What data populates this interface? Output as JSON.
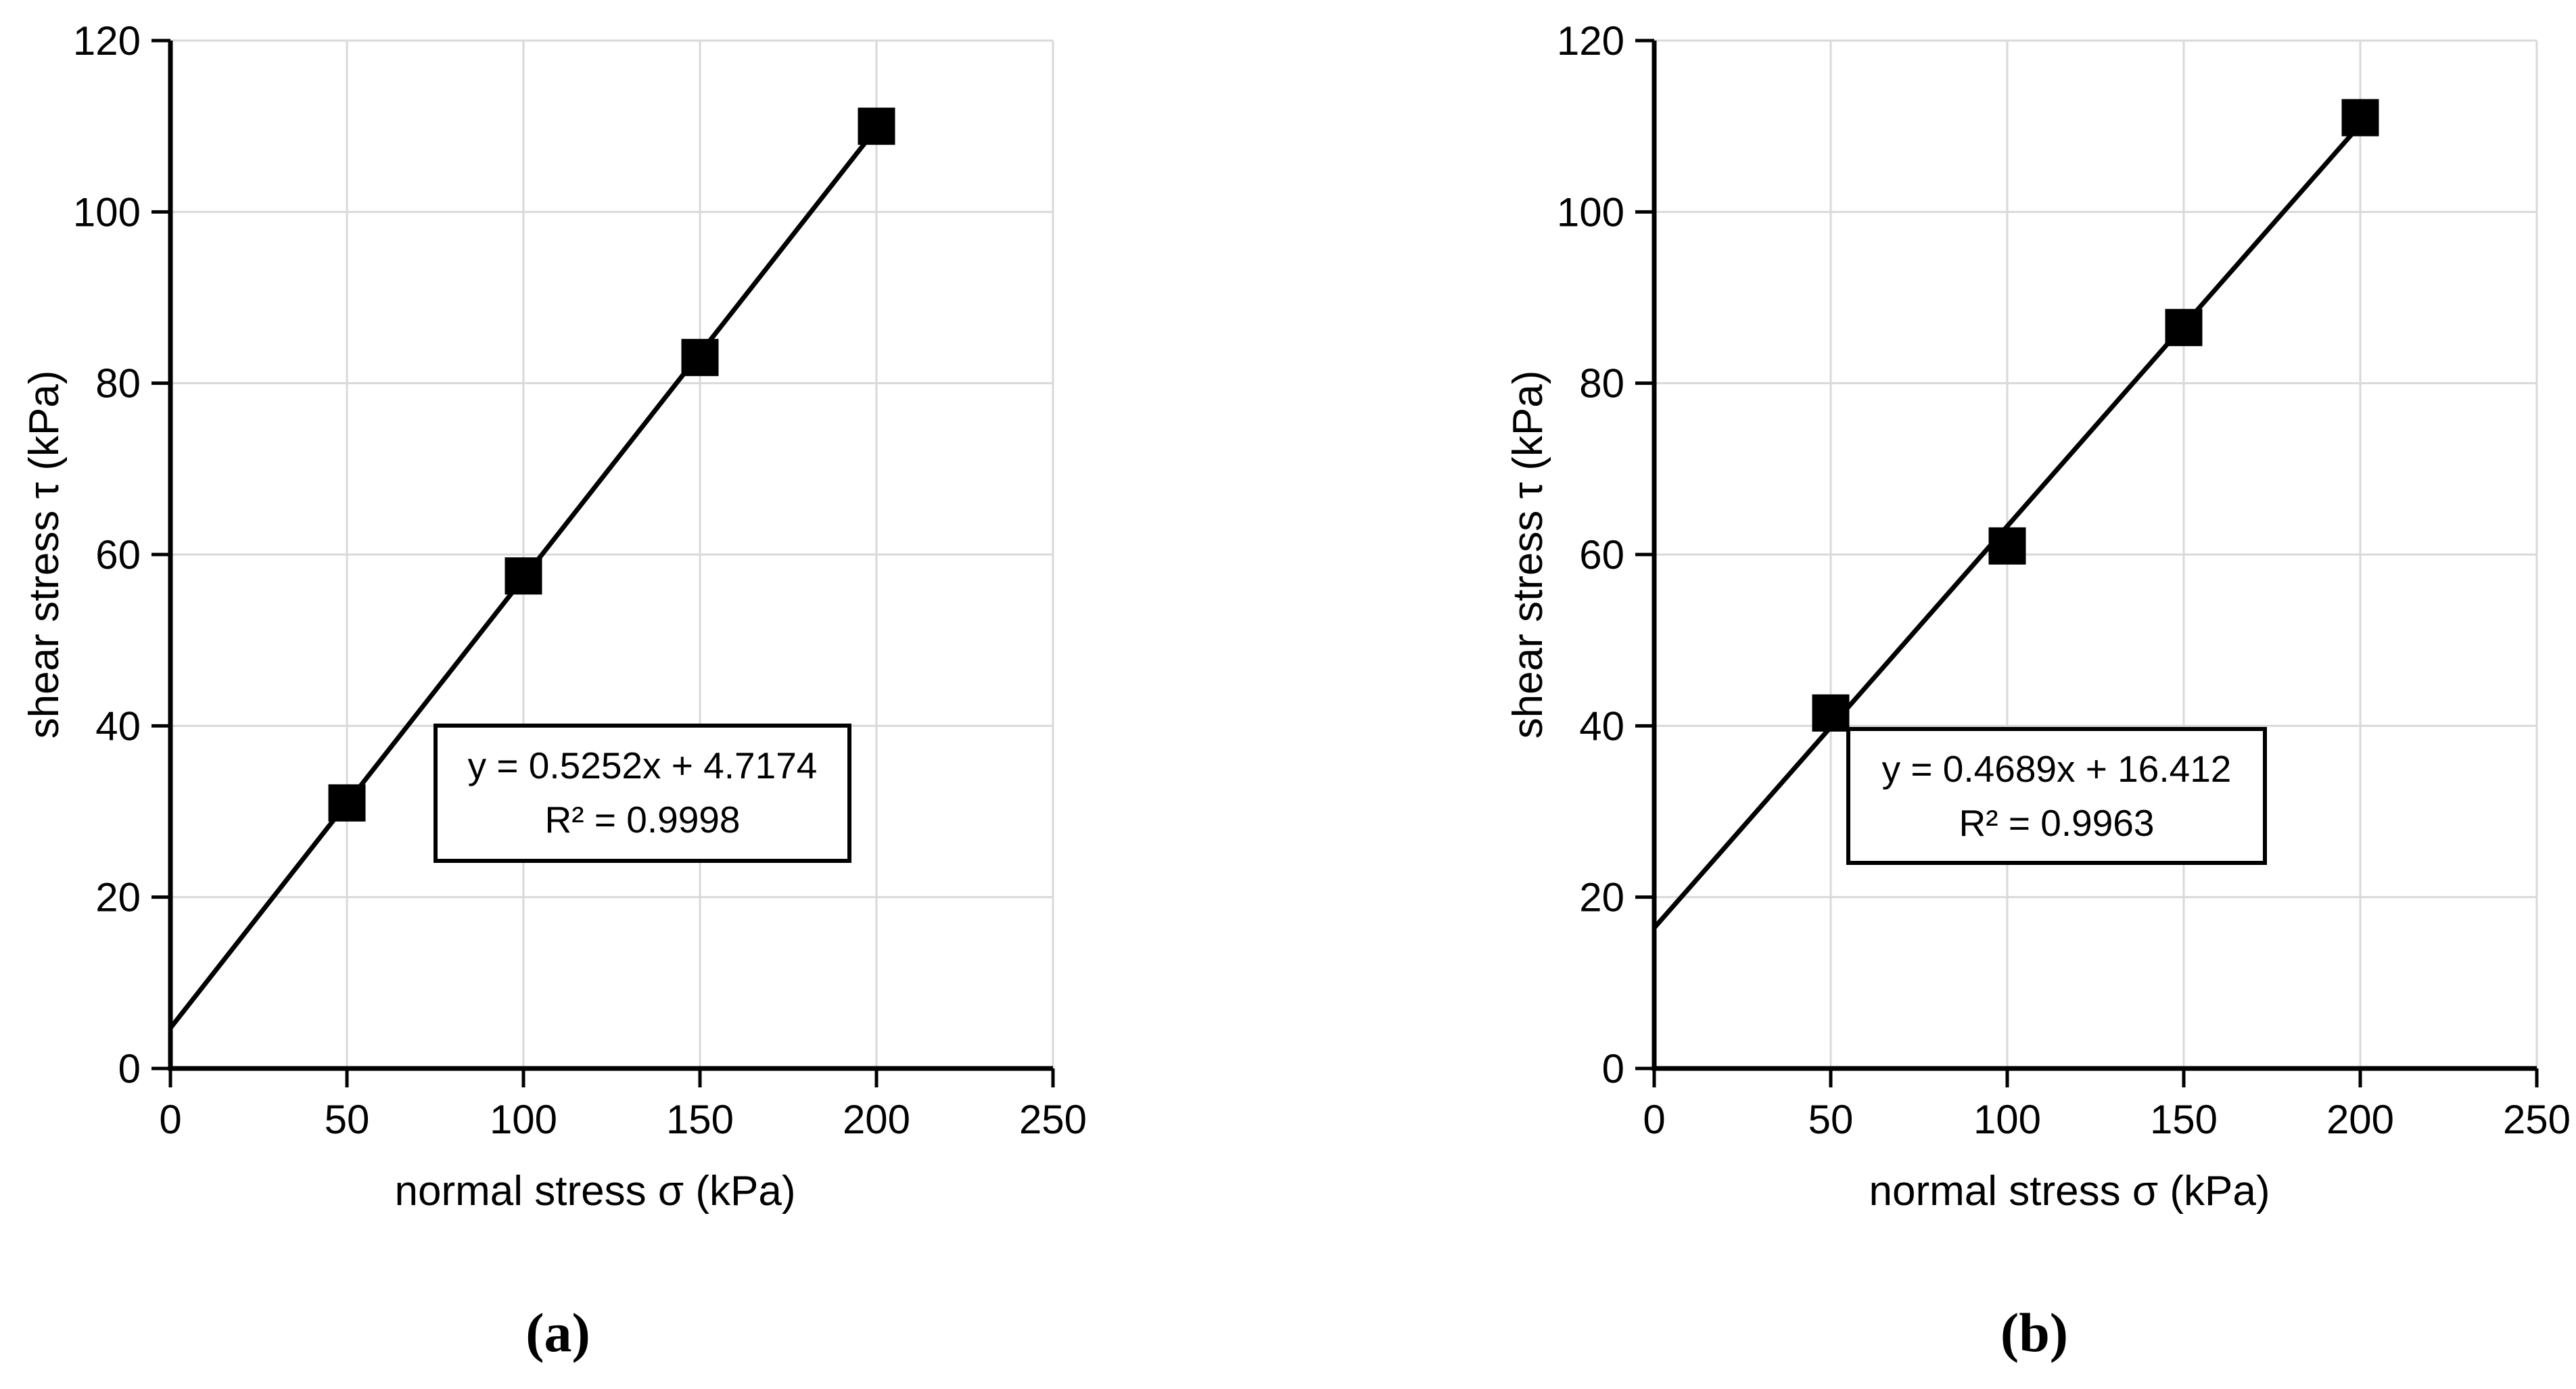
{
  "figure": {
    "background": "#ffffff",
    "captions": {
      "a": "(a)",
      "b": "(b)"
    }
  },
  "colors": {
    "axis": "#000000",
    "grid": "#d9d9d9",
    "marker": "#000000",
    "trendline": "#000000",
    "text": "#000000",
    "equation_box_border": "#000000",
    "equation_box_fill": "#ffffff"
  },
  "chart_data": [
    {
      "id": "a",
      "type": "scatter",
      "caption": "(a)",
      "xlabel": "normal stress σ (kPa)",
      "ylabel": "shear stress τ (kPa)",
      "xlim": [
        0,
        250
      ],
      "ylim": [
        0,
        120
      ],
      "xticks": [
        0,
        50,
        100,
        150,
        200,
        250
      ],
      "yticks": [
        0,
        20,
        40,
        60,
        80,
        100,
        120
      ],
      "grid": true,
      "legend": "none",
      "points": [
        {
          "x": 50,
          "y": 31
        },
        {
          "x": 100,
          "y": 57.5
        },
        {
          "x": 150,
          "y": 83
        },
        {
          "x": 200,
          "y": 110
        }
      ],
      "trendline": {
        "slope": 0.5252,
        "intercept": 4.7174,
        "x_start": 0,
        "x_end": 203
      },
      "equation_label": "y = 0.5252x + 4.7174",
      "r2_label": "R² = 0.9998"
    },
    {
      "id": "b",
      "type": "scatter",
      "caption": "(b)",
      "xlabel": "normal stress σ (kPa)",
      "ylabel": "shear stress τ (kPa)",
      "xlim": [
        0,
        250
      ],
      "ylim": [
        0,
        120
      ],
      "xticks": [
        0,
        50,
        100,
        150,
        200,
        250
      ],
      "yticks": [
        0,
        20,
        40,
        60,
        80,
        100,
        120
      ],
      "grid": true,
      "legend": "none",
      "points": [
        {
          "x": 50,
          "y": 41.5
        },
        {
          "x": 100,
          "y": 61
        },
        {
          "x": 150,
          "y": 86.5
        },
        {
          "x": 200,
          "y": 111
        }
      ],
      "trendline": {
        "slope": 0.4689,
        "intercept": 16.412,
        "x_start": 0,
        "x_end": 202
      },
      "equation_label": "y = 0.4689x + 16.412",
      "r2_label": "R² = 0.9963"
    }
  ]
}
